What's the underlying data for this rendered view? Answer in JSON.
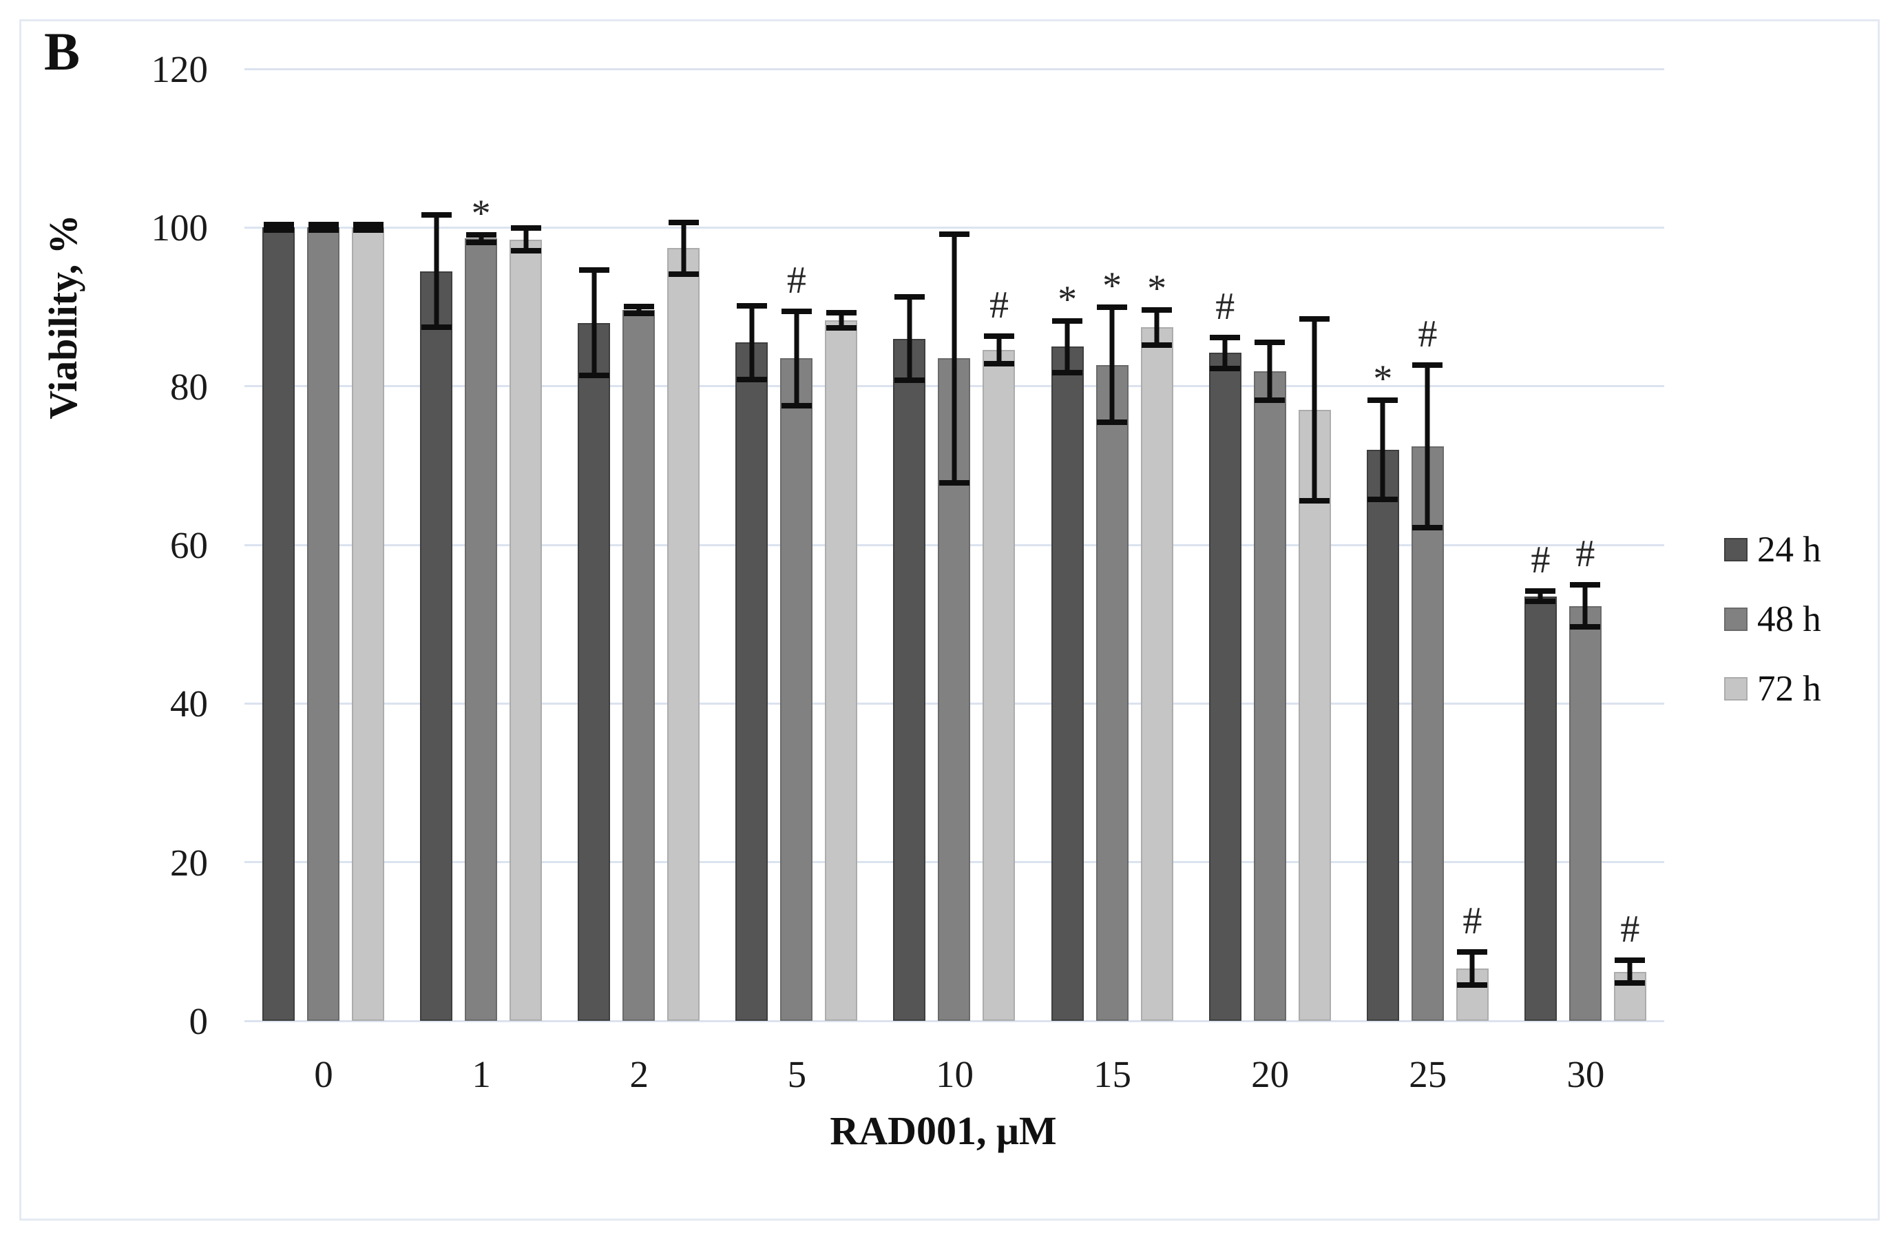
{
  "panel_label": "B",
  "y_axis": {
    "title": "Viability, %",
    "ticks": [
      0,
      20,
      40,
      60,
      80,
      100,
      120
    ],
    "max": 120
  },
  "x_axis": {
    "title": "RAD001, μM"
  },
  "legend": {
    "position": "right",
    "items": [
      {
        "label": "24 h",
        "color": "#555555",
        "border": "#3e3e3e"
      },
      {
        "label": "48 h",
        "color": "#818181",
        "border": "#6a6a6a"
      },
      {
        "label": "72 h",
        "color": "#c5c5c5",
        "border": "#acacac"
      }
    ]
  },
  "chart_data": {
    "type": "bar",
    "title": "",
    "xlabel": "RAD001, μM",
    "ylabel": "Viability, %",
    "ylim": [
      0,
      120
    ],
    "grid": true,
    "legend_position": "right",
    "categories": [
      "0",
      "1",
      "2",
      "5",
      "10",
      "15",
      "20",
      "25",
      "30"
    ],
    "series": [
      {
        "name": "24 h",
        "color": "#555555",
        "border": "#3e3e3e",
        "values": [
          100,
          94.5,
          88,
          85.5,
          86,
          85,
          84.2,
          72,
          53.5
        ],
        "errors": [
          0.7,
          7.4,
          7,
          5,
          5.6,
          3.6,
          2.3,
          6.6,
          1.0
        ],
        "sig_markers": [
          "",
          "",
          "",
          "",
          "",
          "*",
          "#",
          "*",
          "#"
        ]
      },
      {
        "name": "48 h",
        "color": "#818181",
        "border": "#6a6a6a",
        "values": [
          100,
          98.6,
          89.6,
          83.5,
          83.5,
          82.7,
          81.9,
          72.4,
          52.3
        ],
        "errors": [
          0.7,
          0.8,
          0.8,
          6.3,
          16,
          7.6,
          4.0,
          10.6,
          3.0
        ],
        "sig_markers": [
          "",
          "*",
          "",
          "#",
          "",
          "*",
          "",
          "#",
          "#"
        ]
      },
      {
        "name": "72 h",
        "color": "#c5c5c5",
        "border": "#acacac",
        "values": [
          100,
          98.5,
          97.4,
          88.3,
          84.6,
          87.4,
          77,
          6.6,
          6.2
        ],
        "errors": [
          0.7,
          1.8,
          3.6,
          1.3,
          2.1,
          2.6,
          11.8,
          2.4,
          1.8
        ],
        "sig_markers": [
          "",
          "",
          "",
          "",
          "#",
          "*",
          "",
          "#",
          "#"
        ]
      }
    ]
  }
}
